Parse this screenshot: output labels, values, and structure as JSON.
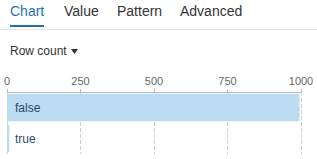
{
  "tabs": [
    "Chart",
    "Value",
    "Pattern",
    "Advanced"
  ],
  "active_tab": "Chart",
  "dropdown": "Row count",
  "chart_data": {
    "type": "bar",
    "orientation": "horizontal",
    "categories": [
      "false",
      "true"
    ],
    "values": [
      995,
      8
    ],
    "color": "#bcdcf2",
    "xlim": [
      0,
      1000
    ],
    "xticks": [
      0,
      250,
      500,
      750,
      1000
    ],
    "grid": true
  }
}
